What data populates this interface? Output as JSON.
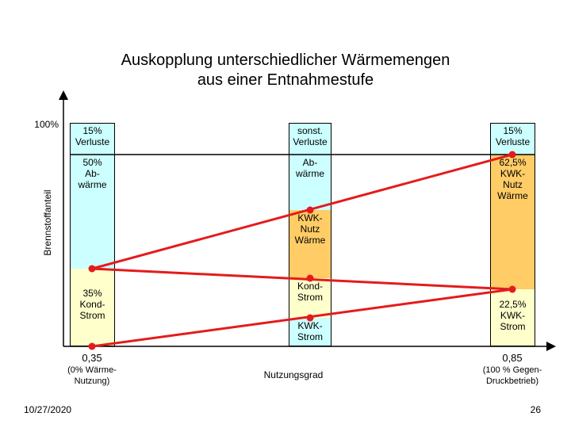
{
  "title": {
    "line1": "Auskopplung unterschiedlicher Wärmemengen",
    "line2": "aus einer Entnahmestufe"
  },
  "axis": {
    "y_top_label": "100%",
    "y_label": "Brennstoffanteil",
    "x_label": "Nutzungsgrad",
    "x_left_value": "0,35",
    "x_left_note": "(0% Wärme-\nNutzung)",
    "x_right_value": "0,85",
    "x_right_note": "(100 % Gegen-\nDruckbetrieb)"
  },
  "columns": {
    "left": {
      "verluste": "15%\nVerluste",
      "abwaerme": "50%\nAb-\nwärme",
      "strom": "35%\nKond-\nStrom"
    },
    "middle": {
      "verluste": "sonst.\nVerluste",
      "abwaerme": "Ab-\nwärme",
      "kwk_waerme": "KWK-\nNutz\nWärme",
      "kond_strom": "Kond-\nStrom",
      "kwk_strom": "KWK-\nStrom"
    },
    "right": {
      "verluste": "15%\nVerluste",
      "kwk_waerme": "62,5%\nKWK-\nNutz\nWärme",
      "kwk_strom": "22,5%\nKWK-\nStrom"
    }
  },
  "colors": {
    "verluste": "#ccffff",
    "abwaerme": "#ccffff",
    "strom": "#ffffcc",
    "kwk_waerme": "#ffcc66",
    "kwk_strom": "#ccffff",
    "lines": "#e41b1b",
    "points": "#e41b1b"
  },
  "footer": {
    "date": "10/27/2020",
    "page": "26"
  }
}
